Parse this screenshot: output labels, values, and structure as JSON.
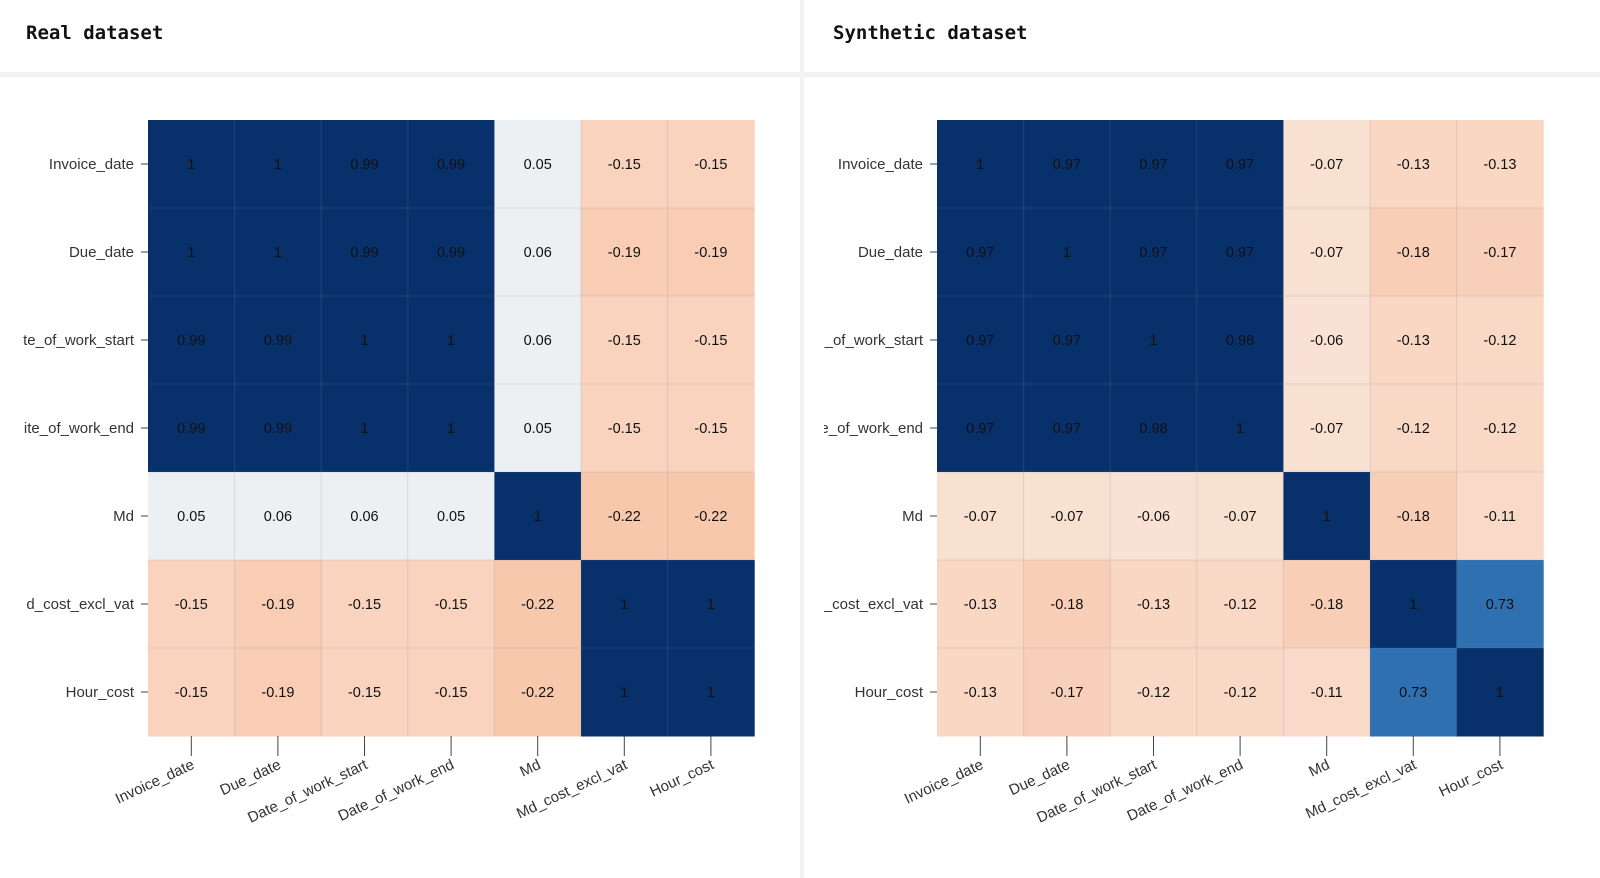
{
  "chart_data": [
    {
      "type": "heatmap",
      "title": "Real dataset",
      "variables": [
        "Invoice_date",
        "Due_date",
        "Date_of_work_start",
        "Date_of_work_end",
        "Md",
        "Md_cost_excl_vat",
        "Hour_cost"
      ],
      "y_tick_labels": [
        "Invoice_date",
        "Due_date",
        "te_of_work_start",
        "ite_of_work_end",
        "Md",
        "d_cost_excl_vat",
        "Hour_cost"
      ],
      "matrix": [
        [
          1,
          1,
          0.99,
          0.99,
          0.05,
          -0.15,
          -0.15
        ],
        [
          1,
          1,
          0.99,
          0.99,
          0.06,
          -0.19,
          -0.19
        ],
        [
          0.99,
          0.99,
          1,
          1,
          0.06,
          -0.15,
          -0.15
        ],
        [
          0.99,
          0.99,
          1,
          1,
          0.05,
          -0.15,
          -0.15
        ],
        [
          0.05,
          0.06,
          0.06,
          0.05,
          1,
          -0.22,
          -0.22
        ],
        [
          -0.15,
          -0.19,
          -0.15,
          -0.15,
          -0.22,
          1,
          1
        ],
        [
          -0.15,
          -0.19,
          -0.15,
          -0.15,
          -0.22,
          1,
          1
        ]
      ],
      "value_range": [
        -1,
        1
      ],
      "colors": {
        "positive": "#08306b",
        "negative": "#e8743a",
        "neutral": "#f2f2f2"
      },
      "legend": "none"
    },
    {
      "type": "heatmap",
      "title": "Synthetic dataset",
      "variables": [
        "Invoice_date",
        "Due_date",
        "Date_of_work_start",
        "Date_of_work_end",
        "Md",
        "Md_cost_excl_vat",
        "Hour_cost"
      ],
      "y_tick_labels": [
        "Invoice_date",
        "Due_date",
        "te_of_work_start",
        "ite_of_work_end",
        "Md",
        "d_cost_excl_vat",
        "Hour_cost"
      ],
      "matrix": [
        [
          1,
          0.97,
          0.97,
          0.97,
          -0.07,
          -0.13,
          -0.13
        ],
        [
          0.97,
          1,
          0.97,
          0.97,
          -0.07,
          -0.18,
          -0.17
        ],
        [
          0.97,
          0.97,
          1,
          0.98,
          -0.06,
          -0.13,
          -0.12
        ],
        [
          0.97,
          0.97,
          0.98,
          1,
          -0.07,
          -0.12,
          -0.12
        ],
        [
          -0.07,
          -0.07,
          -0.06,
          -0.07,
          1,
          -0.18,
          -0.11
        ],
        [
          -0.13,
          -0.18,
          -0.13,
          -0.12,
          -0.18,
          1,
          0.73
        ],
        [
          -0.13,
          -0.17,
          -0.12,
          -0.12,
          -0.11,
          0.73,
          1
        ]
      ],
      "value_range": [
        -1,
        1
      ],
      "colors": {
        "positive": "#08306b",
        "negative": "#e8743a",
        "neutral": "#f2f2f2"
      },
      "legend": "none"
    }
  ]
}
